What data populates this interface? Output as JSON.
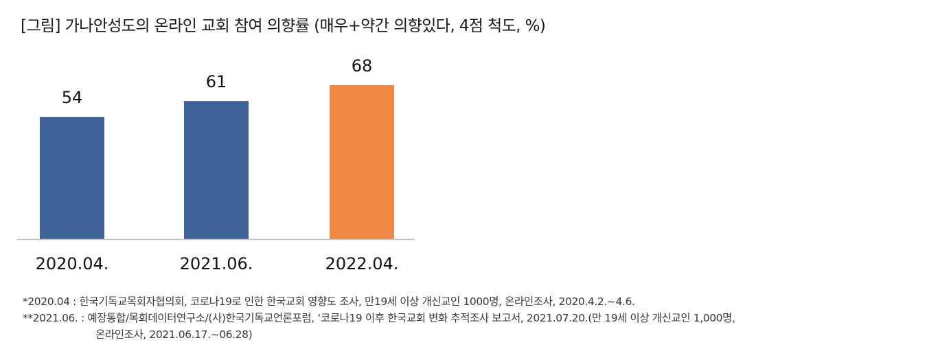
{
  "title": "[그림] 가나안성도의 온라인 교회 참여 의향률 (매우+약간 의향있다, 4점 척도, %)",
  "chart_data": {
    "type": "bar",
    "categories": [
      "2020.04.",
      "2021.06.",
      "2022.04."
    ],
    "values": [
      54,
      61,
      68
    ],
    "value_labels": [
      "54",
      "61",
      "68"
    ],
    "colors": [
      "#3f6398",
      "#3f6398",
      "#ef8747"
    ],
    "ylim": [
      0,
      80
    ],
    "grid": false,
    "legend": "none"
  },
  "notes": {
    "line1": "*2020.04 : 한국기독교목회자협의회, 코로나19로 인한 한국교회 영향도 조사, 만19세 이상 개신교인 1000명, 온라인조사, 2020.4.2.~4.6.",
    "line2": "**2021.06. : 예장통합/목회데이터연구소/(사)한국기독교언론포럼, ‘코로나19 이후 한국교회 변화 추적조사 보고서, 2021.07.20.(만 19세 이상 개신교인 1,000명,",
    "line3": "온라인조사, 2021.06.17.~06.28)"
  }
}
